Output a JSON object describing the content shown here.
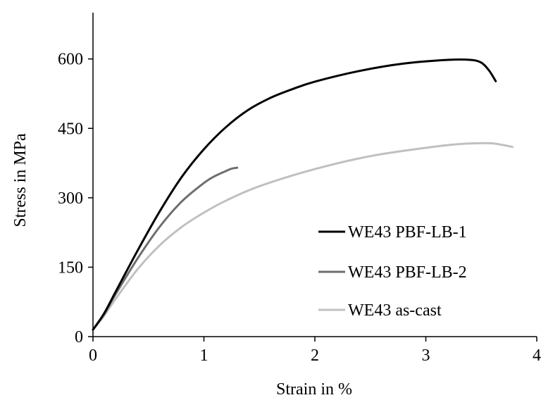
{
  "chart_data": {
    "type": "line",
    "title": "",
    "xlabel": "Strain in %",
    "ylabel": "Stress in MPa",
    "xlim": [
      0,
      4
    ],
    "ylim": [
      0,
      700
    ],
    "xticks": [
      0,
      1,
      2,
      3,
      4
    ],
    "xtick_labels": [
      "0",
      "1",
      "2",
      "3",
      "4"
    ],
    "yticks": [
      0,
      150,
      300,
      450,
      600
    ],
    "ytick_labels": [
      "0",
      "150",
      "300",
      "450",
      "600"
    ],
    "grid": false,
    "legend": "bottom-right",
    "series": [
      {
        "name": "WE43 PBF-LB-1",
        "color": "#000000",
        "x": [
          0,
          0.1,
          0.2,
          0.4,
          0.6,
          0.8,
          1.0,
          1.2,
          1.4,
          1.6,
          1.8,
          2.0,
          2.4,
          2.8,
          3.2,
          3.4,
          3.5,
          3.57,
          3.63
        ],
        "y": [
          15,
          50,
          95,
          185,
          270,
          345,
          405,
          453,
          490,
          516,
          535,
          551,
          574,
          590,
          598,
          598,
          592,
          575,
          552
        ]
      },
      {
        "name": "WE43 PBF-LB-2",
        "color": "#6e6e6e",
        "x": [
          0,
          0.1,
          0.2,
          0.4,
          0.6,
          0.8,
          1.0,
          1.1,
          1.2,
          1.25,
          1.3
        ],
        "y": [
          15,
          48,
          90,
          168,
          237,
          292,
          332,
          347,
          358,
          363,
          365
        ]
      },
      {
        "name": "WE43 as-cast",
        "color": "#c0c0c0",
        "x": [
          0,
          0.1,
          0.2,
          0.4,
          0.6,
          0.8,
          1.0,
          1.2,
          1.5,
          2.0,
          2.5,
          3.0,
          3.3,
          3.55,
          3.65,
          3.78
        ],
        "y": [
          15,
          45,
          80,
          145,
          197,
          237,
          268,
          294,
          325,
          362,
          390,
          408,
          416,
          418,
          416,
          410
        ]
      }
    ]
  }
}
